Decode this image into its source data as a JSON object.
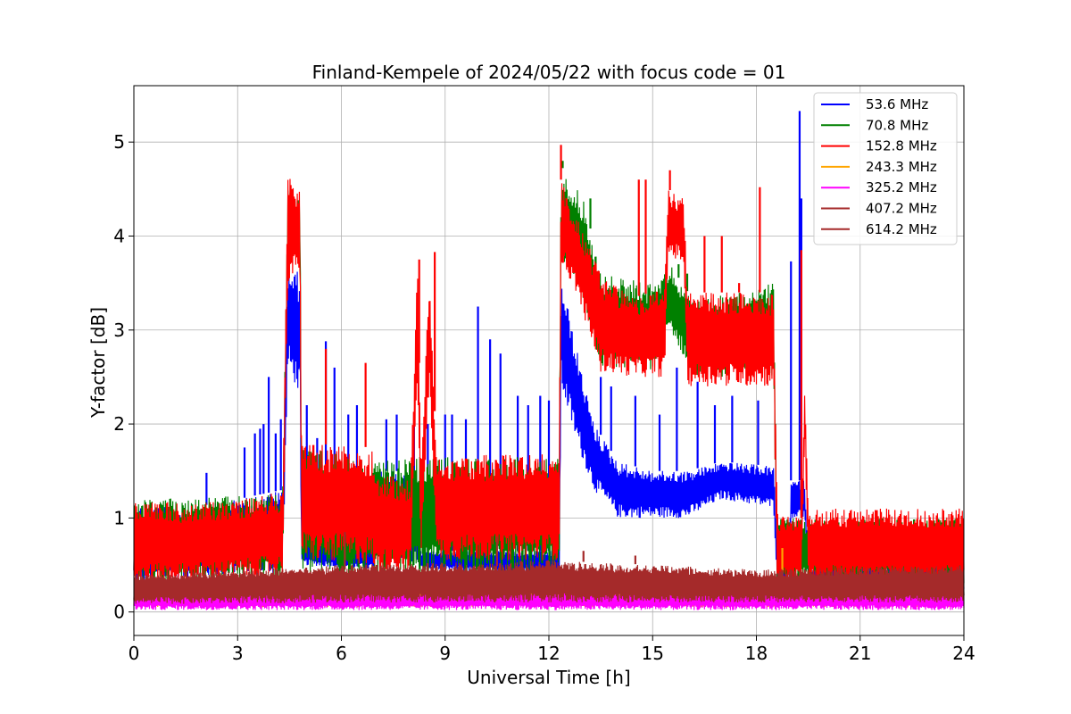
{
  "chart_data": {
    "type": "line",
    "title": "Finland-Kempele of 2024/05/22 with focus code = 01",
    "xlabel": "Universal Time [h]",
    "ylabel": "Y-factor [dB]",
    "xlim": [
      0,
      24
    ],
    "ylim": [
      -0.25,
      5.6
    ],
    "xticks": [
      0,
      3,
      6,
      9,
      12,
      15,
      18,
      21,
      24
    ],
    "xtick_labels": [
      "0",
      "3",
      "6",
      "9",
      "12",
      "15",
      "18",
      "21",
      "24"
    ],
    "yticks": [
      0,
      1,
      2,
      3,
      4,
      5
    ],
    "ytick_labels": [
      "0",
      "1",
      "2",
      "3",
      "4",
      "5"
    ],
    "grid": true,
    "legend_position": "top-right",
    "series": [
      {
        "name": " 53.6 MHz",
        "color": "#0000ff",
        "band": [
          [
            0.0,
            0.3,
            1.15
          ],
          [
            1.5,
            0.35,
            1.1
          ],
          [
            3.0,
            0.4,
            1.2
          ],
          [
            4.3,
            0.4,
            1.3
          ],
          [
            4.45,
            2.6,
            3.7
          ],
          [
            4.8,
            2.3,
            3.6
          ],
          [
            4.85,
            0.5,
            0.75
          ],
          [
            6.9,
            0.45,
            0.7
          ],
          [
            7.0,
            0.5,
            1.5
          ],
          [
            8.2,
            0.5,
            1.5
          ],
          [
            8.25,
            0.45,
            0.65
          ],
          [
            12.3,
            0.4,
            0.65
          ],
          [
            12.35,
            2.4,
            3.6
          ],
          [
            12.8,
            1.8,
            2.8
          ],
          [
            13.3,
            1.3,
            2.0
          ],
          [
            14.0,
            1.0,
            1.6
          ],
          [
            15.0,
            1.0,
            1.5
          ],
          [
            16.0,
            1.0,
            1.5
          ],
          [
            17.0,
            1.2,
            1.6
          ],
          [
            18.5,
            1.1,
            1.55
          ],
          [
            18.6,
            0.3,
            0.7
          ],
          [
            18.95,
            0.3,
            0.7
          ],
          [
            19.0,
            1.0,
            1.4
          ],
          [
            19.4,
            1.0,
            1.4
          ],
          [
            19.5,
            0.2,
            0.5
          ],
          [
            24.0,
            0.2,
            0.5
          ]
        ],
        "spikes": [
          [
            2.1,
            1.48
          ],
          [
            3.2,
            1.75
          ],
          [
            3.5,
            1.9
          ],
          [
            3.65,
            1.95
          ],
          [
            3.75,
            2.0
          ],
          [
            3.9,
            2.5
          ],
          [
            4.1,
            1.9
          ],
          [
            4.25,
            2.05
          ],
          [
            5.0,
            2.2
          ],
          [
            5.3,
            1.85
          ],
          [
            5.55,
            2.88
          ],
          [
            5.8,
            2.6
          ],
          [
            6.2,
            2.1
          ],
          [
            6.45,
            2.2
          ],
          [
            7.3,
            2.05
          ],
          [
            7.6,
            2.1
          ],
          [
            8.1,
            2.0
          ],
          [
            8.5,
            2.0
          ],
          [
            9.0,
            2.1
          ],
          [
            9.2,
            2.1
          ],
          [
            9.6,
            2.05
          ],
          [
            9.95,
            3.25
          ],
          [
            10.3,
            2.9
          ],
          [
            10.6,
            2.75
          ],
          [
            11.1,
            2.3
          ],
          [
            11.4,
            2.2
          ],
          [
            11.75,
            2.3
          ],
          [
            12.0,
            2.25
          ],
          [
            13.5,
            2.5
          ],
          [
            13.8,
            2.4
          ],
          [
            14.5,
            2.3
          ],
          [
            15.2,
            2.1
          ],
          [
            15.7,
            2.6
          ],
          [
            16.3,
            2.45
          ],
          [
            16.8,
            2.2
          ],
          [
            17.3,
            2.3
          ],
          [
            18.05,
            2.25
          ],
          [
            19.0,
            3.73
          ],
          [
            19.25,
            5.33
          ],
          [
            19.3,
            4.4
          ]
        ]
      },
      {
        "name": " 70.8 MHz",
        "color": "#008000",
        "band": [
          [
            0.0,
            0.35,
            1.2
          ],
          [
            4.3,
            0.35,
            1.25
          ],
          [
            4.45,
            3.8,
            4.5
          ],
          [
            4.8,
            3.8,
            4.4
          ],
          [
            4.85,
            0.4,
            1.75
          ],
          [
            7.2,
            0.35,
            1.6
          ],
          [
            8.0,
            0.4,
            1.65
          ],
          [
            12.3,
            0.4,
            1.65
          ],
          [
            12.35,
            3.8,
            4.75
          ],
          [
            13.0,
            3.3,
            4.4
          ],
          [
            13.5,
            2.6,
            3.6
          ],
          [
            15.0,
            2.55,
            3.5
          ],
          [
            15.5,
            3.0,
            3.7
          ],
          [
            16.2,
            2.5,
            3.3
          ],
          [
            18.5,
            2.5,
            3.5
          ],
          [
            18.6,
            0.3,
            1.0
          ],
          [
            24.0,
            0.3,
            1.0
          ]
        ],
        "spikes": [
          [
            12.4,
            4.8
          ],
          [
            13.2,
            4.4
          ],
          [
            15.75,
            3.7
          ],
          [
            16.0,
            3.6
          ]
        ]
      },
      {
        "name": "152.8 MHz",
        "color": "#ff0000",
        "band": [
          [
            0.0,
            0.28,
            1.22
          ],
          [
            1.5,
            0.32,
            1.15
          ],
          [
            3.0,
            0.35,
            1.2
          ],
          [
            4.3,
            0.4,
            1.28
          ],
          [
            4.45,
            3.5,
            4.65
          ],
          [
            4.8,
            3.6,
            4.5
          ],
          [
            4.85,
            0.55,
            1.8
          ],
          [
            6.9,
            0.5,
            1.75
          ],
          [
            7.0,
            0.4,
            1.5
          ],
          [
            8.0,
            0.45,
            1.4
          ],
          [
            8.2,
            2.5,
            3.7
          ],
          [
            8.3,
            0.5,
            1.6
          ],
          [
            8.55,
            2.5,
            3.6
          ],
          [
            8.75,
            0.55,
            1.65
          ],
          [
            12.3,
            0.55,
            1.7
          ],
          [
            12.35,
            3.7,
            4.6
          ],
          [
            12.8,
            3.4,
            4.2
          ],
          [
            13.5,
            2.55,
            3.6
          ],
          [
            14.5,
            2.5,
            3.35
          ],
          [
            15.35,
            2.5,
            3.45
          ],
          [
            15.45,
            3.8,
            4.5
          ],
          [
            15.9,
            3.7,
            4.4
          ],
          [
            16.0,
            2.4,
            3.4
          ],
          [
            18.5,
            2.4,
            3.4
          ],
          [
            18.6,
            0.3,
            1.05
          ],
          [
            19.3,
            0.3,
            1.0
          ],
          [
            19.4,
            1.9,
            2.5
          ],
          [
            19.5,
            0.3,
            1.1
          ],
          [
            24.0,
            0.3,
            1.1
          ]
        ],
        "spikes": [
          [
            5.55,
            2.8
          ],
          [
            6.7,
            2.65
          ],
          [
            8.25,
            3.75
          ],
          [
            8.7,
            3.83
          ],
          [
            12.35,
            4.97
          ],
          [
            14.6,
            4.6
          ],
          [
            14.8,
            4.6
          ],
          [
            15.5,
            4.7
          ],
          [
            16.5,
            4.0
          ],
          [
            17.0,
            4.0
          ],
          [
            17.5,
            3.5
          ],
          [
            18.1,
            4.52
          ],
          [
            19.3,
            3.85
          ]
        ]
      },
      {
        "name": "243.3 MHz",
        "color": "#ffa500",
        "band": [
          [
            0.0,
            0.05,
            0.28
          ],
          [
            24.0,
            0.05,
            0.28
          ]
        ],
        "spikes": [
          [
            18.75,
            0.68
          ],
          [
            22.8,
            0.2
          ]
        ]
      },
      {
        "name": "325.2 MHz",
        "color": "#ff00ff",
        "band": [
          [
            0.0,
            0.02,
            0.22
          ],
          [
            24.0,
            0.02,
            0.22
          ]
        ],
        "spikes": [
          [
            2.3,
            0.12
          ],
          [
            14.2,
            0.1
          ]
        ]
      },
      {
        "name": "407.2 MHz",
        "color": "#a52a2a",
        "band": [
          [
            0.0,
            0.08,
            0.38
          ],
          [
            6.0,
            0.1,
            0.45
          ],
          [
            12.0,
            0.1,
            0.5
          ],
          [
            18.0,
            0.1,
            0.4
          ],
          [
            24.0,
            0.1,
            0.45
          ]
        ],
        "spikes": [
          [
            6.1,
            0.85
          ],
          [
            10.5,
            0.8
          ]
        ]
      },
      {
        "name": "614.2 MHz",
        "color": "#a52a2a",
        "band": [
          [
            0.0,
            0.12,
            0.4
          ],
          [
            6.0,
            0.12,
            0.5
          ],
          [
            12.0,
            0.12,
            0.55
          ],
          [
            18.0,
            0.12,
            0.45
          ],
          [
            24.0,
            0.12,
            0.5
          ]
        ],
        "spikes": [
          [
            13.0,
            0.65
          ],
          [
            14.5,
            0.6
          ]
        ]
      }
    ]
  }
}
